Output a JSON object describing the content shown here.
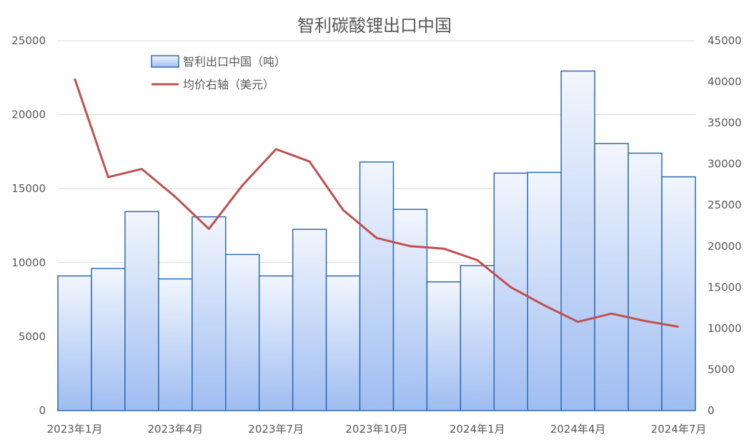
{
  "chart_data": {
    "type": "bar",
    "title": "智利碳酸锂出口中国",
    "legend_position": "top-left",
    "grid": true,
    "categories": [
      "2023年1月",
      "2023年2月",
      "2023年3月",
      "2023年4月",
      "2023年5月",
      "2023年6月",
      "2023年7月",
      "2023年8月",
      "2023年9月",
      "2023年10月",
      "2023年11月",
      "2023年12月",
      "2024年1月",
      "2024年2月",
      "2024年3月",
      "2024年4月",
      "2024年5月",
      "2024年6月",
      "2024年7月"
    ],
    "x_tick_labels": [
      "2023年1月",
      "",
      "",
      "2023年4月",
      "",
      "",
      "2023年7月",
      "",
      "",
      "2023年10月",
      "",
      "",
      "2024年1月",
      "",
      "",
      "2024年4月",
      "",
      "",
      "2024年7月"
    ],
    "left_axis": {
      "ylim": [
        0,
        25000
      ],
      "ticks": [
        "0",
        "5000",
        "10000",
        "15000",
        "20000",
        "25000"
      ]
    },
    "right_axis": {
      "ylim": [
        0,
        45000
      ],
      "ticks": [
        "0",
        "5000",
        "10000",
        "15000",
        "20000",
        "25000",
        "30000",
        "35000",
        "40000",
        "45000"
      ]
    },
    "series": [
      {
        "name": "智利出口中国（吨）",
        "kind": "bar",
        "axis": "left",
        "values": [
          9100,
          9600,
          13450,
          8900,
          13100,
          10550,
          9100,
          12250,
          9100,
          16800,
          13600,
          8700,
          9800,
          16050,
          16100,
          22950,
          18050,
          17400,
          15800
        ]
      },
      {
        "name": "均价右轴（美元）",
        "kind": "line",
        "axis": "right",
        "color": "#c0504d",
        "values": [
          40400,
          28400,
          29400,
          26000,
          22100,
          27400,
          31800,
          30300,
          24400,
          21000,
          20000,
          19700,
          18300,
          15000,
          12800,
          10800,
          11800,
          10900,
          10200
        ]
      }
    ]
  }
}
